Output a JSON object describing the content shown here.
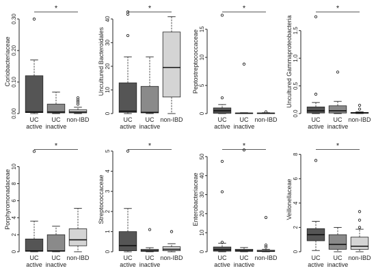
{
  "chart_data": [
    {
      "type": "boxplot",
      "ylabel": "Coriobacteriaceae",
      "ylim": [
        0,
        0.33
      ],
      "yticks": [
        0.0,
        0.1,
        0.2,
        0.3
      ],
      "ytick_labels": [
        "0.00",
        "0.10",
        "0.20",
        "0.30"
      ],
      "significance": {
        "label": "*",
        "from": 0,
        "to": 2
      },
      "groups": [
        {
          "label1": "UC",
          "label2": "active",
          "color": "#555555",
          "min": 0,
          "q1": 0.003,
          "median": 0.005,
          "q3": 0.12,
          "max": 0.17,
          "outliers": [
            0.3
          ]
        },
        {
          "label1": "UC",
          "label2": "inactive",
          "color": "#8a8a8a",
          "min": 0,
          "q1": 0.002,
          "median": 0.005,
          "q3": 0.03,
          "max": 0.068,
          "outliers": []
        },
        {
          "label1": "",
          "label2": "non-IBD",
          "color": "#d4d4d4",
          "min": 0,
          "q1": 0.002,
          "median": 0.005,
          "q3": 0.012,
          "max": 0.02,
          "outliers": [
            0.03,
            0.037,
            0.043,
            0.05
          ]
        }
      ]
    },
    {
      "type": "boxplot",
      "ylabel": "Uncultured Bacteroidales",
      "ylim": [
        0,
        44
      ],
      "yticks": [
        0,
        10,
        20,
        30,
        40
      ],
      "ytick_labels": [
        "0",
        "10",
        "20",
        "30",
        "40"
      ],
      "significance": {
        "label": "*",
        "from": 0,
        "to": 2
      },
      "groups": [
        {
          "label1": "UC",
          "label2": "active",
          "color": "#555555",
          "min": 0,
          "q1": 0.5,
          "median": 1,
          "q3": 13,
          "max": 24,
          "outliers": [
            33,
            42,
            43
          ]
        },
        {
          "label1": "UC",
          "label2": "inactive",
          "color": "#8a8a8a",
          "min": 0,
          "q1": 0.3,
          "median": 0.5,
          "q3": 11.5,
          "max": 24,
          "outliers": []
        },
        {
          "label1": "",
          "label2": "non-IBD",
          "color": "#d4d4d4",
          "min": 0,
          "q1": 7,
          "median": 19.5,
          "q3": 34.5,
          "max": 41,
          "outliers": []
        }
      ]
    },
    {
      "type": "boxplot",
      "ylabel": "Peptostreptococcaceae",
      "ylim": [
        0,
        18.5
      ],
      "yticks": [
        0,
        5,
        10,
        15
      ],
      "ytick_labels": [
        "0",
        "5",
        "10",
        "15"
      ],
      "significance": {
        "label": "*",
        "from": 0,
        "to": 2
      },
      "groups": [
        {
          "label1": "UC",
          "label2": "active",
          "color": "#555555",
          "min": 0,
          "q1": 0.05,
          "median": 0.5,
          "q3": 1.0,
          "max": 1.6,
          "outliers": [
            2.8,
            17.5
          ]
        },
        {
          "label1": "UC",
          "label2": "inactive",
          "color": "#8a8a8a",
          "min": 0,
          "q1": 0.02,
          "median": 0.05,
          "q3": 0.1,
          "max": 0.15,
          "outliers": [
            8.8
          ]
        },
        {
          "label1": "",
          "label2": "non-IBD",
          "color": "#d4d4d4",
          "min": 0,
          "q1": 0.02,
          "median": 0.05,
          "q3": 0.1,
          "max": 0.15,
          "outliers": [
            0.3
          ]
        }
      ]
    },
    {
      "type": "boxplot",
      "ylabel": "Uncultured Gammaproteobacteria",
      "ylim": [
        0,
        1.88
      ],
      "yticks": [
        0.0,
        0.5,
        1.0,
        1.5
      ],
      "ytick_labels": [
        "0.0",
        "0.5",
        "1.0",
        "1.5"
      ],
      "significance": {
        "label": "*",
        "from": 0,
        "to": 2
      },
      "groups": [
        {
          "label1": "UC",
          "label2": "active",
          "color": "#555555",
          "min": 0,
          "q1": 0.01,
          "median": 0.05,
          "q3": 0.12,
          "max": 0.2,
          "outliers": [
            0.35,
            1.75
          ]
        },
        {
          "label1": "UC",
          "label2": "inactive",
          "color": "#8a8a8a",
          "min": 0,
          "q1": 0.01,
          "median": 0.05,
          "q3": 0.14,
          "max": 0.22,
          "outliers": [
            0.75
          ]
        },
        {
          "label1": "",
          "label2": "non-IBD",
          "color": "#d4d4d4",
          "min": 0,
          "q1": 0.005,
          "median": 0.01,
          "q3": 0.02,
          "max": 0.03,
          "outliers": [
            0.08,
            0.15
          ]
        }
      ]
    },
    {
      "type": "boxplot",
      "ylabel": "Porphyromonadaceae",
      "ylim": [
        0,
        12.3
      ],
      "yticks": [
        0,
        2,
        4,
        6,
        8,
        10
      ],
      "ytick_labels": [
        "0",
        "2",
        "4",
        "6",
        "8",
        "10"
      ],
      "significance": {
        "label": "*",
        "from": 0,
        "to": 2
      },
      "groups": [
        {
          "label1": "UC",
          "label2": "active",
          "color": "#555555",
          "min": 0,
          "q1": 0.05,
          "median": 0.1,
          "q3": 1.5,
          "max": 3.6,
          "outliers": [
            11.8
          ]
        },
        {
          "label1": "UC",
          "label2": "inactive",
          "color": "#8a8a8a",
          "min": 0,
          "q1": 0.05,
          "median": 0.1,
          "q3": 2.0,
          "max": 3.0,
          "outliers": []
        },
        {
          "label1": "",
          "label2": "non-IBD",
          "color": "#d4d4d4",
          "min": 0,
          "q1": 0.7,
          "median": 1.4,
          "q3": 2.7,
          "max": 5.1,
          "outliers": []
        }
      ]
    },
    {
      "type": "boxplot",
      "ylabel": "Streptococcaceae",
      "ylim": [
        0,
        5.2
      ],
      "yticks": [
        0,
        1,
        2,
        3,
        4,
        5
      ],
      "ytick_labels": [
        "0",
        "1",
        "2",
        "3",
        "4",
        "5"
      ],
      "significance": {
        "label": "*",
        "from": 0,
        "to": 2
      },
      "groups": [
        {
          "label1": "UC",
          "label2": "active",
          "color": "#555555",
          "min": 0,
          "q1": 0.05,
          "median": 0.3,
          "q3": 1.0,
          "max": 2.15,
          "outliers": [
            5.0
          ]
        },
        {
          "label1": "UC",
          "label2": "inactive",
          "color": "#8a8a8a",
          "min": 0,
          "q1": 0.02,
          "median": 0.05,
          "q3": 0.12,
          "max": 0.2,
          "outliers": [
            1.1
          ]
        },
        {
          "label1": "",
          "label2": "non-IBD",
          "color": "#d4d4d4",
          "min": 0,
          "q1": 0.05,
          "median": 0.12,
          "q3": 0.25,
          "max": 0.4,
          "outliers": [
            1.0
          ]
        }
      ]
    },
    {
      "type": "boxplot",
      "ylabel": "Enterobacteriaceae",
      "ylim": [
        0,
        55
      ],
      "yticks": [
        0,
        10,
        20,
        30,
        40,
        50
      ],
      "ytick_labels": [
        "0",
        "10",
        "20",
        "30",
        "40",
        "50"
      ],
      "significance": {
        "label": "*",
        "from": 0,
        "to": 2
      },
      "groups": [
        {
          "label1": "UC",
          "label2": "active",
          "color": "#555555",
          "min": 0,
          "q1": 0.3,
          "median": 1.0,
          "q3": 2.5,
          "max": 4.5,
          "outliers": [
            5.0,
            31.5,
            47.5
          ]
        },
        {
          "label1": "UC",
          "label2": "inactive",
          "color": "#8a8a8a",
          "min": 0,
          "q1": 0.2,
          "median": 0.6,
          "q3": 1.3,
          "max": 2.2,
          "outliers": [
            53.5
          ]
        },
        {
          "label1": "",
          "label2": "non-IBD",
          "color": "#d4d4d4",
          "min": 0,
          "q1": 0.1,
          "median": 0.3,
          "q3": 0.8,
          "max": 1.3,
          "outliers": [
            2.5,
            3.5,
            18
          ]
        }
      ]
    },
    {
      "type": "boxplot",
      "ylabel": "Veillonellaceae",
      "ylim": [
        0,
        8.6
      ],
      "yticks": [
        0,
        2,
        4,
        6,
        8
      ],
      "ytick_labels": [
        "0",
        "2",
        "4",
        "6",
        "8"
      ],
      "significance": {
        "label": "*",
        "from": 0,
        "to": 2
      },
      "groups": [
        {
          "label1": "UC",
          "label2": "active",
          "color": "#555555",
          "min": 0.1,
          "q1": 0.9,
          "median": 1.4,
          "q3": 1.9,
          "max": 2.5,
          "outliers": [
            7.5
          ]
        },
        {
          "label1": "UC",
          "label2": "inactive",
          "color": "#8a8a8a",
          "min": 0,
          "q1": 0.2,
          "median": 0.6,
          "q3": 1.4,
          "max": 2.0,
          "outliers": []
        },
        {
          "label1": "",
          "label2": "non-IBD",
          "color": "#d4d4d4",
          "min": 0,
          "q1": 0.2,
          "median": 0.45,
          "q3": 1.2,
          "max": 1.85,
          "outliers": [
            2.0,
            2.6,
            3.3
          ]
        }
      ]
    }
  ]
}
